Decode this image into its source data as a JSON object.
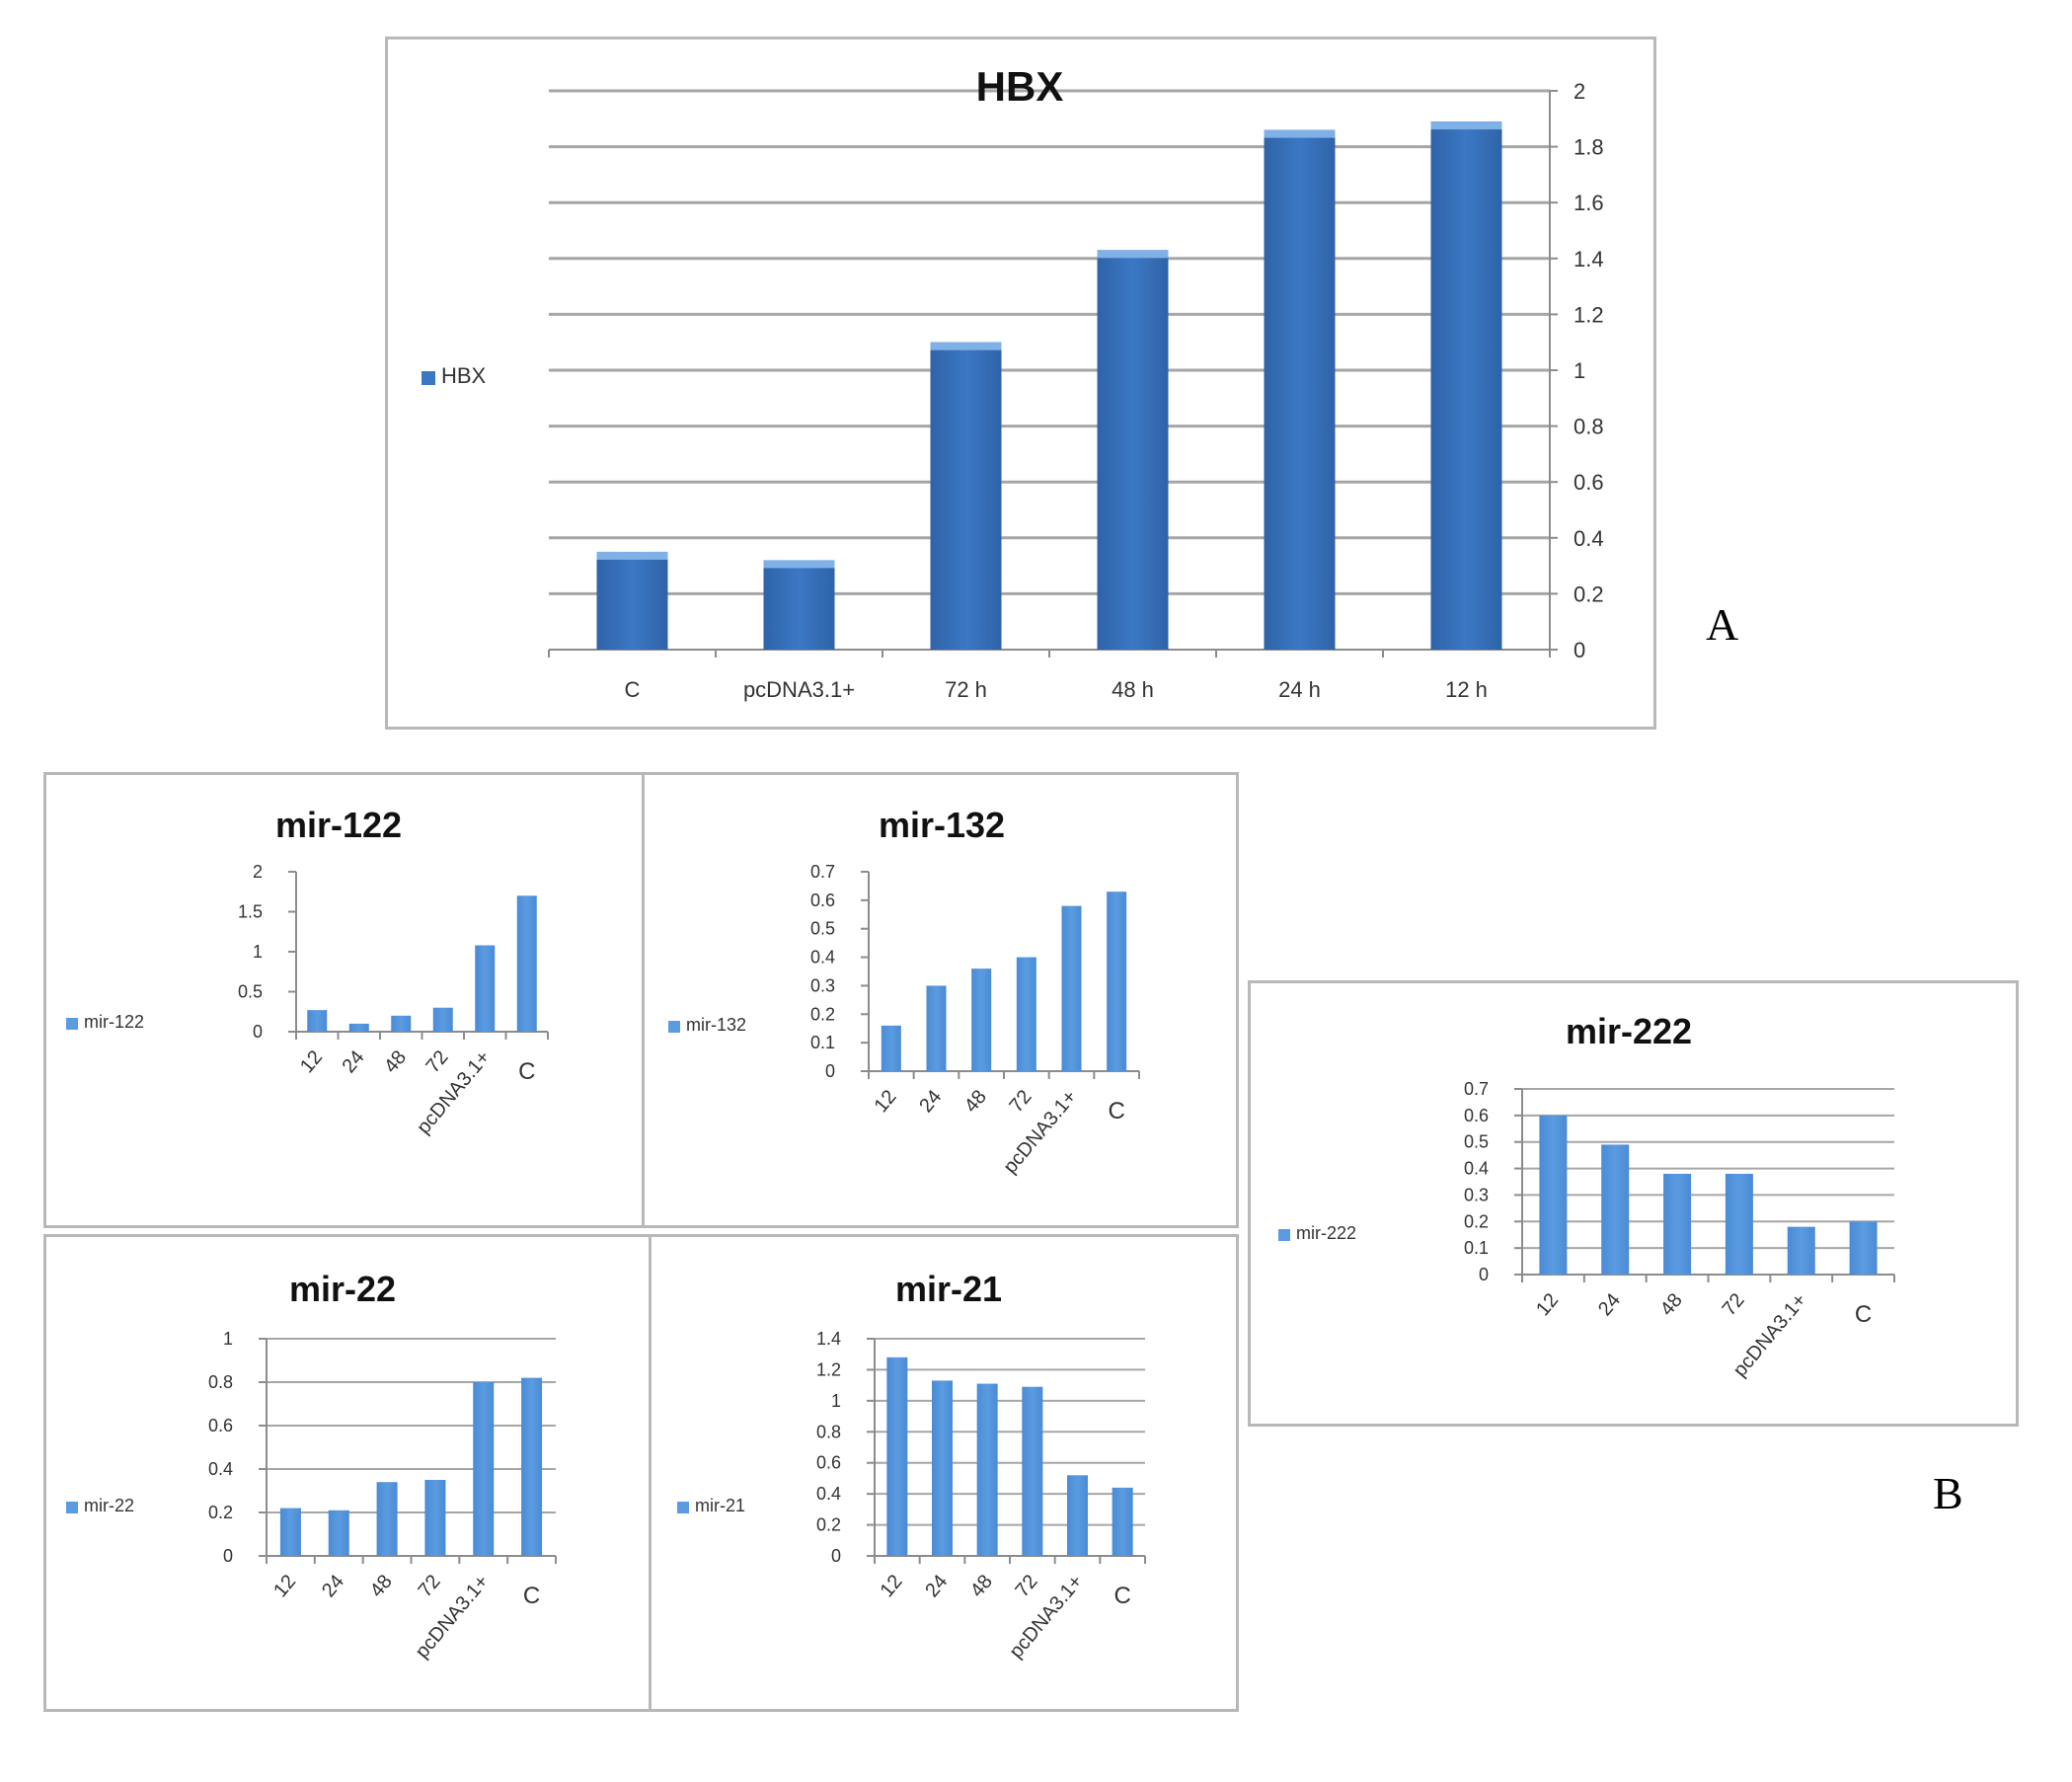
{
  "panel_labels": {
    "a": "A",
    "b": "B"
  },
  "colors": {
    "hbx_bar": "#3b78c4",
    "hbx_bar_top": "#7fb0e6",
    "mir_bar": "#5b9be0",
    "grid": "#a6a6a6",
    "border": "#b8b8b8"
  },
  "chart_data": [
    {
      "id": "hbx",
      "type": "bar",
      "title": "HBX",
      "categories": [
        "C",
        "pcDNA3.1+",
        "72 h",
        "48 h",
        "24 h",
        "12 h"
      ],
      "series": [
        {
          "name": "HBX",
          "values": [
            0.35,
            0.32,
            1.1,
            1.43,
            1.86,
            1.89
          ]
        }
      ],
      "ylim": [
        0,
        2
      ],
      "yticks": [
        "0",
        "0.2",
        "0.4",
        "0.6",
        "0.8",
        "1",
        "1.2",
        "1.4",
        "1.6",
        "1.8",
        "2"
      ],
      "y_axis_side": "right",
      "grid": true,
      "legend": "left"
    },
    {
      "id": "mir122",
      "type": "bar",
      "title": "mir-122",
      "categories": [
        "12",
        "24",
        "48",
        "72",
        "pcDNA3.1+",
        "C"
      ],
      "series": [
        {
          "name": "mir-122",
          "values": [
            0.27,
            0.1,
            0.2,
            0.3,
            1.08,
            1.7
          ]
        }
      ],
      "ylim": [
        0,
        2
      ],
      "yticks": [
        "0",
        "0.5",
        "1",
        "1.5",
        "2"
      ],
      "grid": false,
      "legend": "left"
    },
    {
      "id": "mir132",
      "type": "bar",
      "title": "mir-132",
      "categories": [
        "12",
        "24",
        "48",
        "72",
        "pcDNA3.1+",
        "C"
      ],
      "series": [
        {
          "name": "mir-132",
          "values": [
            0.16,
            0.3,
            0.36,
            0.4,
            0.58,
            0.63
          ]
        }
      ],
      "ylim": [
        0,
        0.7
      ],
      "yticks": [
        "0",
        "0.1",
        "0.2",
        "0.3",
        "0.4",
        "0.5",
        "0.6",
        "0.7"
      ],
      "grid": false,
      "legend": "left"
    },
    {
      "id": "mir222",
      "type": "bar",
      "title": "mir-222",
      "categories": [
        "12",
        "24",
        "48",
        "72",
        "pcDNA3.1+",
        "C"
      ],
      "series": [
        {
          "name": "mir-222",
          "values": [
            0.6,
            0.49,
            0.38,
            0.38,
            0.18,
            0.2
          ]
        }
      ],
      "ylim": [
        0,
        0.7
      ],
      "yticks": [
        "0",
        "0.1",
        "0.2",
        "0.3",
        "0.4",
        "0.5",
        "0.6",
        "0.7"
      ],
      "grid": true,
      "legend": "left"
    },
    {
      "id": "mir22",
      "type": "bar",
      "title": "mir-22",
      "categories": [
        "12",
        "24",
        "48",
        "72",
        "pcDNA3.1+",
        "C"
      ],
      "series": [
        {
          "name": "mir-22",
          "values": [
            0.22,
            0.21,
            0.34,
            0.35,
            0.8,
            0.82
          ]
        }
      ],
      "ylim": [
        0,
        1
      ],
      "yticks": [
        "0",
        "0.2",
        "0.4",
        "0.6",
        "0.8",
        "1"
      ],
      "grid": true,
      "legend": "left"
    },
    {
      "id": "mir21",
      "type": "bar",
      "title": "mir-21",
      "categories": [
        "12",
        "24",
        "48",
        "72",
        "pcDNA3.1+",
        "C"
      ],
      "series": [
        {
          "name": "mir-21",
          "values": [
            1.28,
            1.13,
            1.11,
            1.09,
            0.52,
            0.44
          ]
        }
      ],
      "ylim": [
        0,
        1.4
      ],
      "yticks": [
        "0",
        "0.2",
        "0.4",
        "0.6",
        "0.8",
        "1",
        "1.2",
        "1.4"
      ],
      "grid": true,
      "legend": "left"
    }
  ]
}
